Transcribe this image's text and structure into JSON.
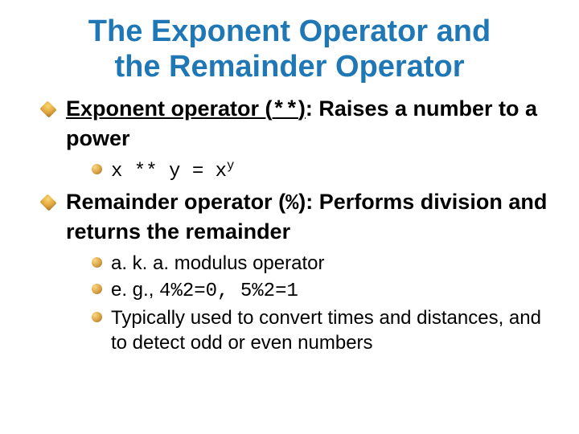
{
  "title_color": "#1f78b5",
  "text_color": "#000000",
  "bg_color": "#ffffff",
  "bullet_gradient": [
    "#f9d76b",
    "#e0a642",
    "#a66d20"
  ],
  "title_line1": "The Exponent Operator and",
  "title_line2": "the Remainder Operator",
  "items": [
    {
      "heading_underlined": "Exponent operator (",
      "heading_code": "**",
      "heading_after_code": ")",
      "heading_rest": ": Raises a number to a power",
      "sub": [
        {
          "code_prefix": "x ** y = x",
          "code_sup": "y"
        }
      ]
    },
    {
      "heading_plain_pre": "Remainder operator (",
      "heading_code": "%",
      "heading_plain_post": "): Performs division and returns the remainder",
      "sub": [
        {
          "text": "a. k. a. modulus operator"
        },
        {
          "text_pre": "e. g., ",
          "code": "4%2=0, 5%2=1"
        },
        {
          "text": "Typically used to convert times and distances, and to detect odd or even numbers"
        }
      ]
    }
  ]
}
